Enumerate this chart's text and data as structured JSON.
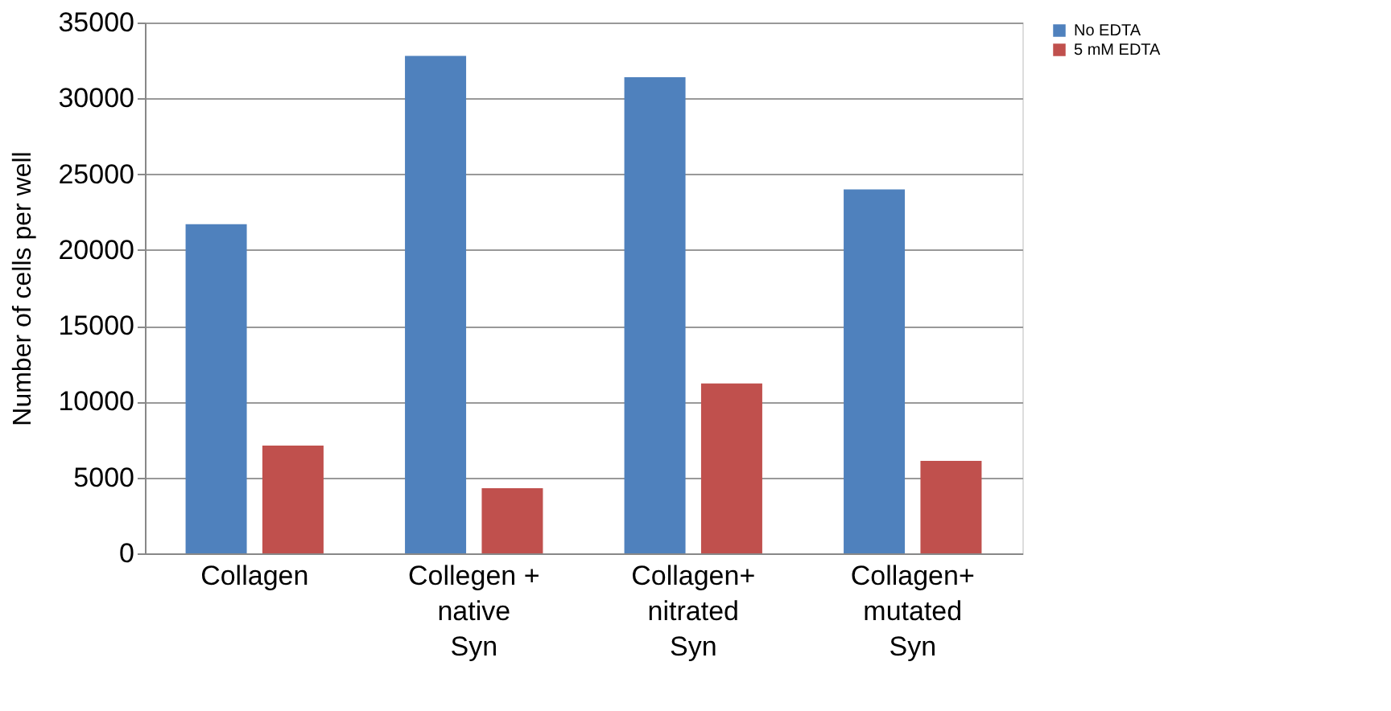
{
  "chart_data": {
    "type": "bar",
    "ylabel": "Number of cells per well",
    "categories": [
      "Collagen",
      "Collegen +\nnative\nSyn",
      "Collagen+\nnitrated\nSyn",
      "Collagen+\nmutated\nSyn"
    ],
    "series": [
      {
        "name": "No EDTA",
        "color": "#4f81bd",
        "values": [
          21700,
          32800,
          31400,
          24000
        ]
      },
      {
        "name": "5 mM EDTA",
        "color": "#c0504d",
        "values": [
          7100,
          4300,
          11200,
          6100
        ]
      }
    ],
    "ylim": [
      0,
      35000
    ],
    "yticks": [
      0,
      5000,
      10000,
      15000,
      20000,
      25000,
      30000,
      35000
    ],
    "grid": "y",
    "legend": "right"
  }
}
